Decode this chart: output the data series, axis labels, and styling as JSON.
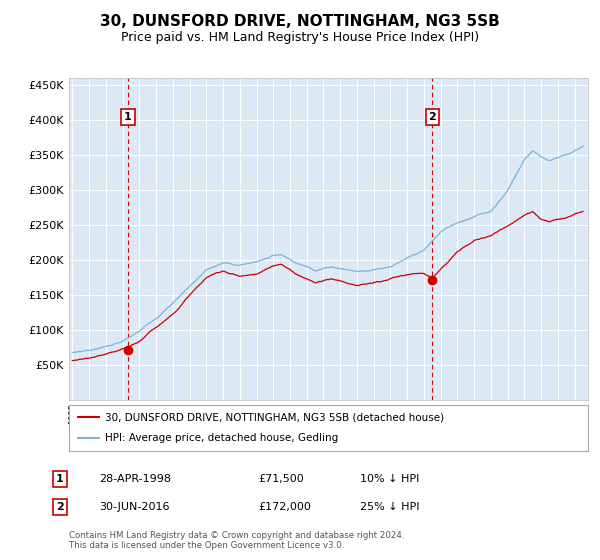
{
  "title": "30, DUNSFORD DRIVE, NOTTINGHAM, NG3 5SB",
  "subtitle": "Price paid vs. HM Land Registry's House Price Index (HPI)",
  "title_fontsize": 11,
  "subtitle_fontsize": 9,
  "bg_color": "#dce9f5",
  "hpi_color": "#7ab4d8",
  "price_color": "#cc0000",
  "marker_color": "#cc0000",
  "sale1_year": 1998.32,
  "sale1_price": 71500,
  "sale2_year": 2016.5,
  "sale2_price": 172000,
  "sale1_label": "1",
  "sale2_label": "2",
  "legend_line1": "30, DUNSFORD DRIVE, NOTTINGHAM, NG3 5SB (detached house)",
  "legend_line2": "HPI: Average price, detached house, Gedling",
  "annotation1_date": "28-APR-1998",
  "annotation1_price": "£71,500",
  "annotation1_hpi": "10% ↓ HPI",
  "annotation2_date": "30-JUN-2016",
  "annotation2_price": "£172,000",
  "annotation2_hpi": "25% ↓ HPI",
  "footer": "Contains HM Land Registry data © Crown copyright and database right 2024.\nThis data is licensed under the Open Government Licence v3.0.",
  "ylim_min": 0,
  "ylim_max": 460000,
  "yticks": [
    50000,
    100000,
    150000,
    200000,
    250000,
    300000,
    350000,
    400000,
    450000
  ],
  "xmin": 1994.8,
  "xmax": 2025.8
}
